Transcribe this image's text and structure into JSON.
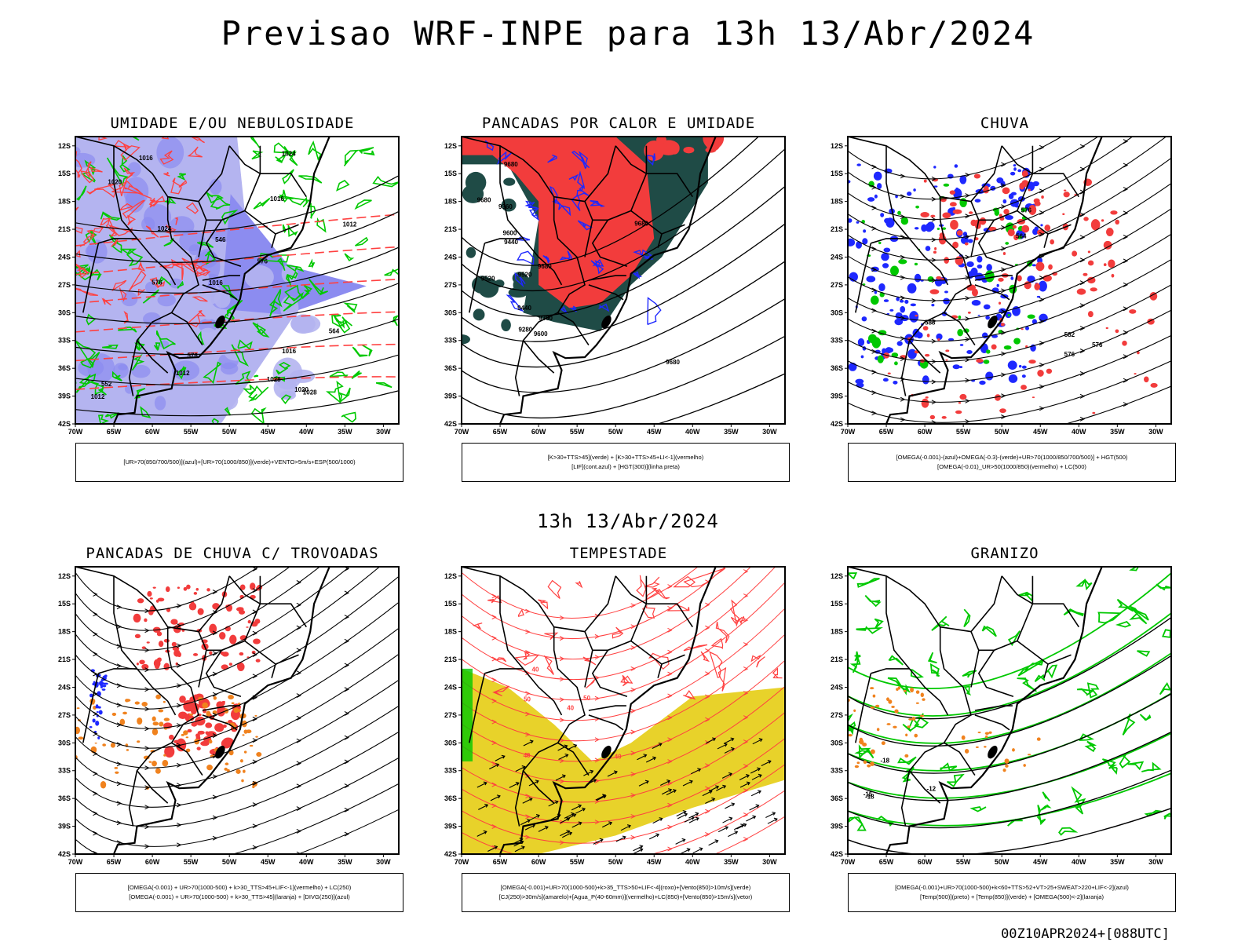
{
  "title": "Previsao WRF-INPE  para 13h 13/Abr/2024",
  "mid_title": "13h 13/Abr/2024",
  "footer": "00Z10APR2024+[088UTC]",
  "axes": {
    "lat_labels": [
      "12S",
      "15S",
      "18S",
      "21S",
      "24S",
      "27S",
      "30S",
      "33S",
      "36S",
      "39S",
      "42S"
    ],
    "lon_labels": [
      "70W",
      "65W",
      "60W",
      "55W",
      "50W",
      "45W",
      "40W",
      "35W",
      "30W"
    ]
  },
  "colors": {
    "humid_blue": "#8c8cf0",
    "humid_violet": "#b4b4f0",
    "red_fill": "#f23c3c",
    "dark_teal": "#1f4b46",
    "green": "#00c800",
    "blue": "#1e28ff",
    "orange": "#f0821e",
    "yellow": "#e8d22a",
    "contour": "#000000"
  },
  "panels": [
    {
      "id": "umidade",
      "title": "UMIDADE E/OU NEBULOSIDADE",
      "legend": [
        "[UR>70(850/700/500)](azul)+[UR>70(1000/850)](verde)+VENTO>5m/s+ESP(500/1000)"
      ],
      "labels": [
        "1012",
        "1012",
        "1012",
        "1016",
        "1016",
        "1016",
        "1016",
        "1020",
        "1020",
        "1024",
        "1024",
        "1028",
        "1028",
        "576",
        "576",
        "576",
        "564",
        "552",
        "546"
      ]
    },
    {
      "id": "pancadas-calor",
      "title": "PANCADAS POR CALOR E UMIDADE",
      "legend": [
        "[K>30+TTS>45](verde) + [K>30+TTS>45+LI<-1](vermelho)",
        "[LIF](cont.azul) + [HGT(300)](linha preta)"
      ],
      "labels": [
        "9680",
        "9680",
        "9680",
        "9600",
        "9680",
        "9520",
        "9680",
        "9600",
        "9360",
        "9440",
        "9520",
        "9440",
        "9360",
        "9280"
      ]
    },
    {
      "id": "chuva",
      "title": "CHUVA",
      "legend": [
        "[OMEGA(-0.001)-(azul)+OMEGA(-0.3)-(verde)+UR>70(1000/850/700/500)] + HGT(500)",
        "[OMEGA(-0.01)_UR>50(1000/850)(vermelho) + LC(500)"
      ],
      "labels": [
        "588",
        "576",
        "582",
        "576",
        "576",
        "564"
      ]
    },
    {
      "id": "pancadas-trovoadas",
      "title": "PANCADAS DE CHUVA C/ TROVOADAS",
      "legend": [
        "[OMEGA(-0.001) + UR>70(1000-500) + k>30_TTS>45+LIF<-1](vermelho) + LC(250)",
        "[OMEGA(-0.001) + UR>70(1000-500) + k>30_TTS>45](laranja) + [DIVG(250)](azul)"
      ],
      "labels": []
    },
    {
      "id": "tempestade",
      "title": "TEMPESTADE",
      "legend": [
        "[OMEGA(-0.001)+UR>70(1000-500)+k>35_TTS>50+LIF<-4](roxo)+[Vento(850)>10m/s](verde)",
        "[CJ(250)>30m/s](amarelo)+[Agua_P(40-60mm)](vermelho)+LC(850)+[Vento(850)>15m/s](vetor)"
      ],
      "labels": [
        "40",
        "40",
        "40",
        "40",
        "50",
        "50"
      ]
    },
    {
      "id": "granizo",
      "title": "GRANIZO",
      "legend": [
        "[OMEGA(-0.001)+UR>70(1000-500)+k<60+TTS>52+VT>25+SWEAT>220+LIF<-2](azul)",
        "[Temp(500)](preto) + [Temp(850)](verde) + [OMEGA(500)<-2](laranja)"
      ],
      "labels": [
        "-15",
        "-12",
        "-18",
        "-18"
      ]
    }
  ]
}
